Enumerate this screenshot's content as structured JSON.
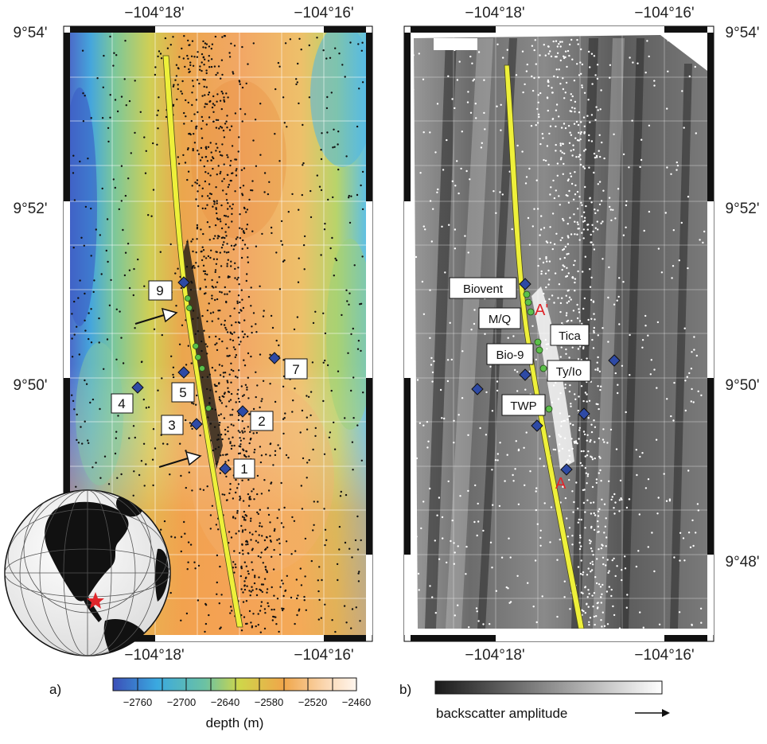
{
  "panel_a": {
    "label": "a)",
    "lon_labels": [
      "−104°18'",
      "−104°16'"
    ],
    "lat_labels": [
      "9°54'",
      "9°52'",
      "9°50'"
    ],
    "markers": [
      {
        "id": "1",
        "label": "1"
      },
      {
        "id": "2",
        "label": "2"
      },
      {
        "id": "3",
        "label": "3"
      },
      {
        "id": "4",
        "label": "4"
      },
      {
        "id": "5",
        "label": "5"
      },
      {
        "id": "7",
        "label": "7"
      },
      {
        "id": "9",
        "label": "9"
      }
    ],
    "colorbar": {
      "title": "depth (m)",
      "ticks": [
        "−2760",
        "−2700",
        "−2640",
        "−2580",
        "−2520",
        "−2460"
      ],
      "colors": [
        "#3b4fb8",
        "#3aa9e0",
        "#6cc2a2",
        "#cfd64a",
        "#f0a64a",
        "#fbd9b5",
        "#fff6ee"
      ]
    }
  },
  "panel_b": {
    "label": "b)",
    "lon_labels": [
      "−104°18'",
      "−104°16'"
    ],
    "lat_labels": [
      "9°54'",
      "9°52'",
      "9°50'",
      "9°48'"
    ],
    "sites": [
      "Biovent",
      "M/Q",
      "Tica",
      "Bio-9",
      "Ty/Io",
      "TWP"
    ],
    "profile_end_label": "A'",
    "profile_start_label": "A",
    "colorbar": {
      "title": "backscatter amplitude",
      "arrow": "→"
    }
  },
  "colors": {
    "vent_fill": "#eef03a",
    "marker_fill": "#2e4aa5",
    "site_fill": "#5cc04a",
    "annotation_red": "#e0262b"
  }
}
